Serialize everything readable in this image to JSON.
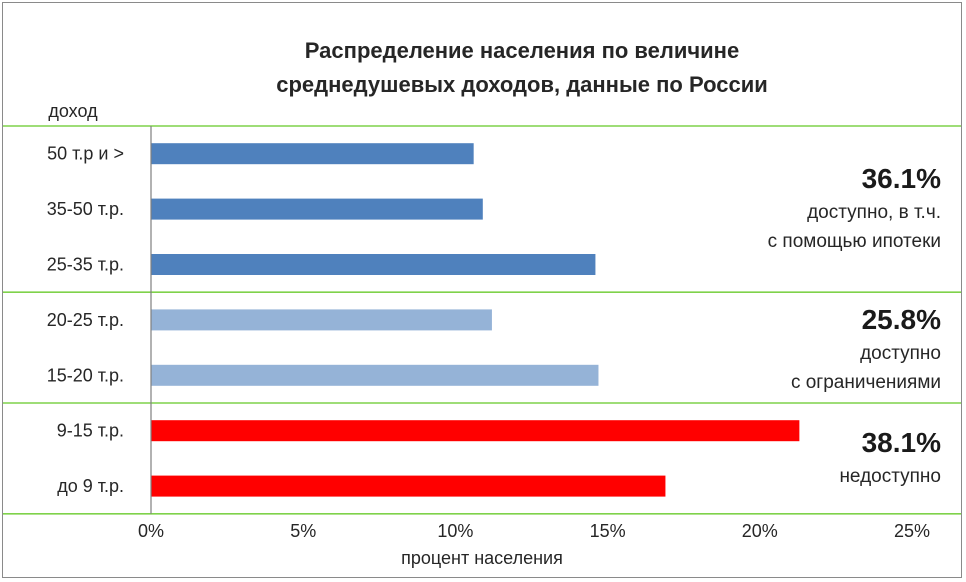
{
  "chart_data": {
    "type": "bar",
    "orientation": "horizontal",
    "title_lines": [
      "Распределение населения по величине",
      "среднедушевых доходов, данные по России"
    ],
    "ylabel": "доход",
    "xlabel": "процент населения",
    "xlim": [
      0,
      25
    ],
    "xticks": [
      "0%",
      "5%",
      "10%",
      "15%",
      "20%",
      "25%"
    ],
    "categories": [
      "50 т.р и >",
      "35-50 т.р.",
      "25-35 т.р.",
      "20-25 т.р.",
      "15-20 т.р.",
      "9-15 т.р.",
      "до 9 т.р."
    ],
    "values": [
      10.6,
      10.9,
      14.6,
      11.2,
      14.7,
      21.3,
      16.9
    ],
    "colors": [
      "#4f81bd",
      "#4f81bd",
      "#4f81bd",
      "#95b3d7",
      "#95b3d7",
      "#ff0000",
      "#ff0000"
    ],
    "groups": [
      {
        "pct": "36.1%",
        "note": [
          "доступно, в т.ч.",
          "с помощью ипотеки"
        ],
        "first": 0,
        "last": 2
      },
      {
        "pct": "25.8%",
        "note": [
          "доступно",
          "с ограничениями"
        ],
        "first": 3,
        "last": 4
      },
      {
        "pct": "38.1%",
        "note": [
          "недоступно"
        ],
        "first": 5,
        "last": 6
      }
    ],
    "separator_color": "#7fd24a",
    "grid": false
  }
}
